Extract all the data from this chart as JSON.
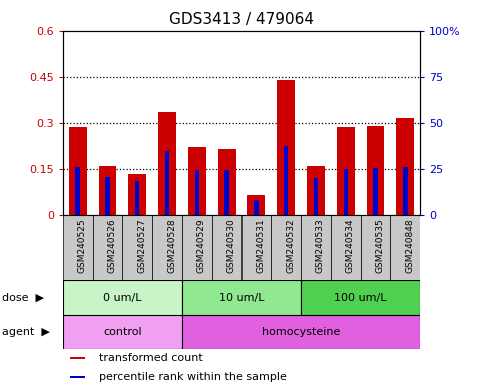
{
  "title": "GDS3413 / 479064",
  "samples": [
    "GSM240525",
    "GSM240526",
    "GSM240527",
    "GSM240528",
    "GSM240529",
    "GSM240530",
    "GSM240531",
    "GSM240532",
    "GSM240533",
    "GSM240534",
    "GSM240535",
    "GSM240848"
  ],
  "transformed_count": [
    0.285,
    0.16,
    0.135,
    0.335,
    0.22,
    0.215,
    0.065,
    0.44,
    0.16,
    0.285,
    0.29,
    0.315
  ],
  "percentile_rank_scaled": [
    0.155,
    0.125,
    0.11,
    0.21,
    0.148,
    0.145,
    0.05,
    0.225,
    0.12,
    0.15,
    0.152,
    0.158
  ],
  "ylim_left": [
    0,
    0.6
  ],
  "ylim_right": [
    0,
    100
  ],
  "yticks_left": [
    0,
    0.15,
    0.3,
    0.45,
    0.6
  ],
  "yticks_right": [
    0,
    25,
    50,
    75,
    100
  ],
  "ytick_labels_left": [
    "0",
    "0.15",
    "0.3",
    "0.45",
    "0.6"
  ],
  "ytick_labels_right": [
    "0",
    "25",
    "50",
    "75",
    "100%"
  ],
  "hlines": [
    0.15,
    0.3,
    0.45
  ],
  "dose_groups": [
    {
      "label": "0 um/L",
      "start": 0,
      "end": 4,
      "color": "#c8f5c8"
    },
    {
      "label": "10 um/L",
      "start": 4,
      "end": 8,
      "color": "#90e890"
    },
    {
      "label": "100 um/L",
      "start": 8,
      "end": 12,
      "color": "#50d050"
    }
  ],
  "agent_groups": [
    {
      "label": "control",
      "start": 0,
      "end": 4,
      "color": "#f0a0f0"
    },
    {
      "label": "homocysteine",
      "start": 4,
      "end": 12,
      "color": "#e060e0"
    }
  ],
  "bar_color": "#cc0000",
  "percentile_color": "#0000cc",
  "bar_width": 0.6,
  "blue_bar_width": 0.15,
  "legend_items": [
    {
      "color": "#cc0000",
      "label": "transformed count"
    },
    {
      "color": "#0000cc",
      "label": "percentile rank within the sample"
    }
  ],
  "dose_label": "dose",
  "agent_label": "agent",
  "left_axis_color": "#cc0000",
  "right_axis_color": "#0000cc",
  "tick_bg_color": "#c8c8c8"
}
